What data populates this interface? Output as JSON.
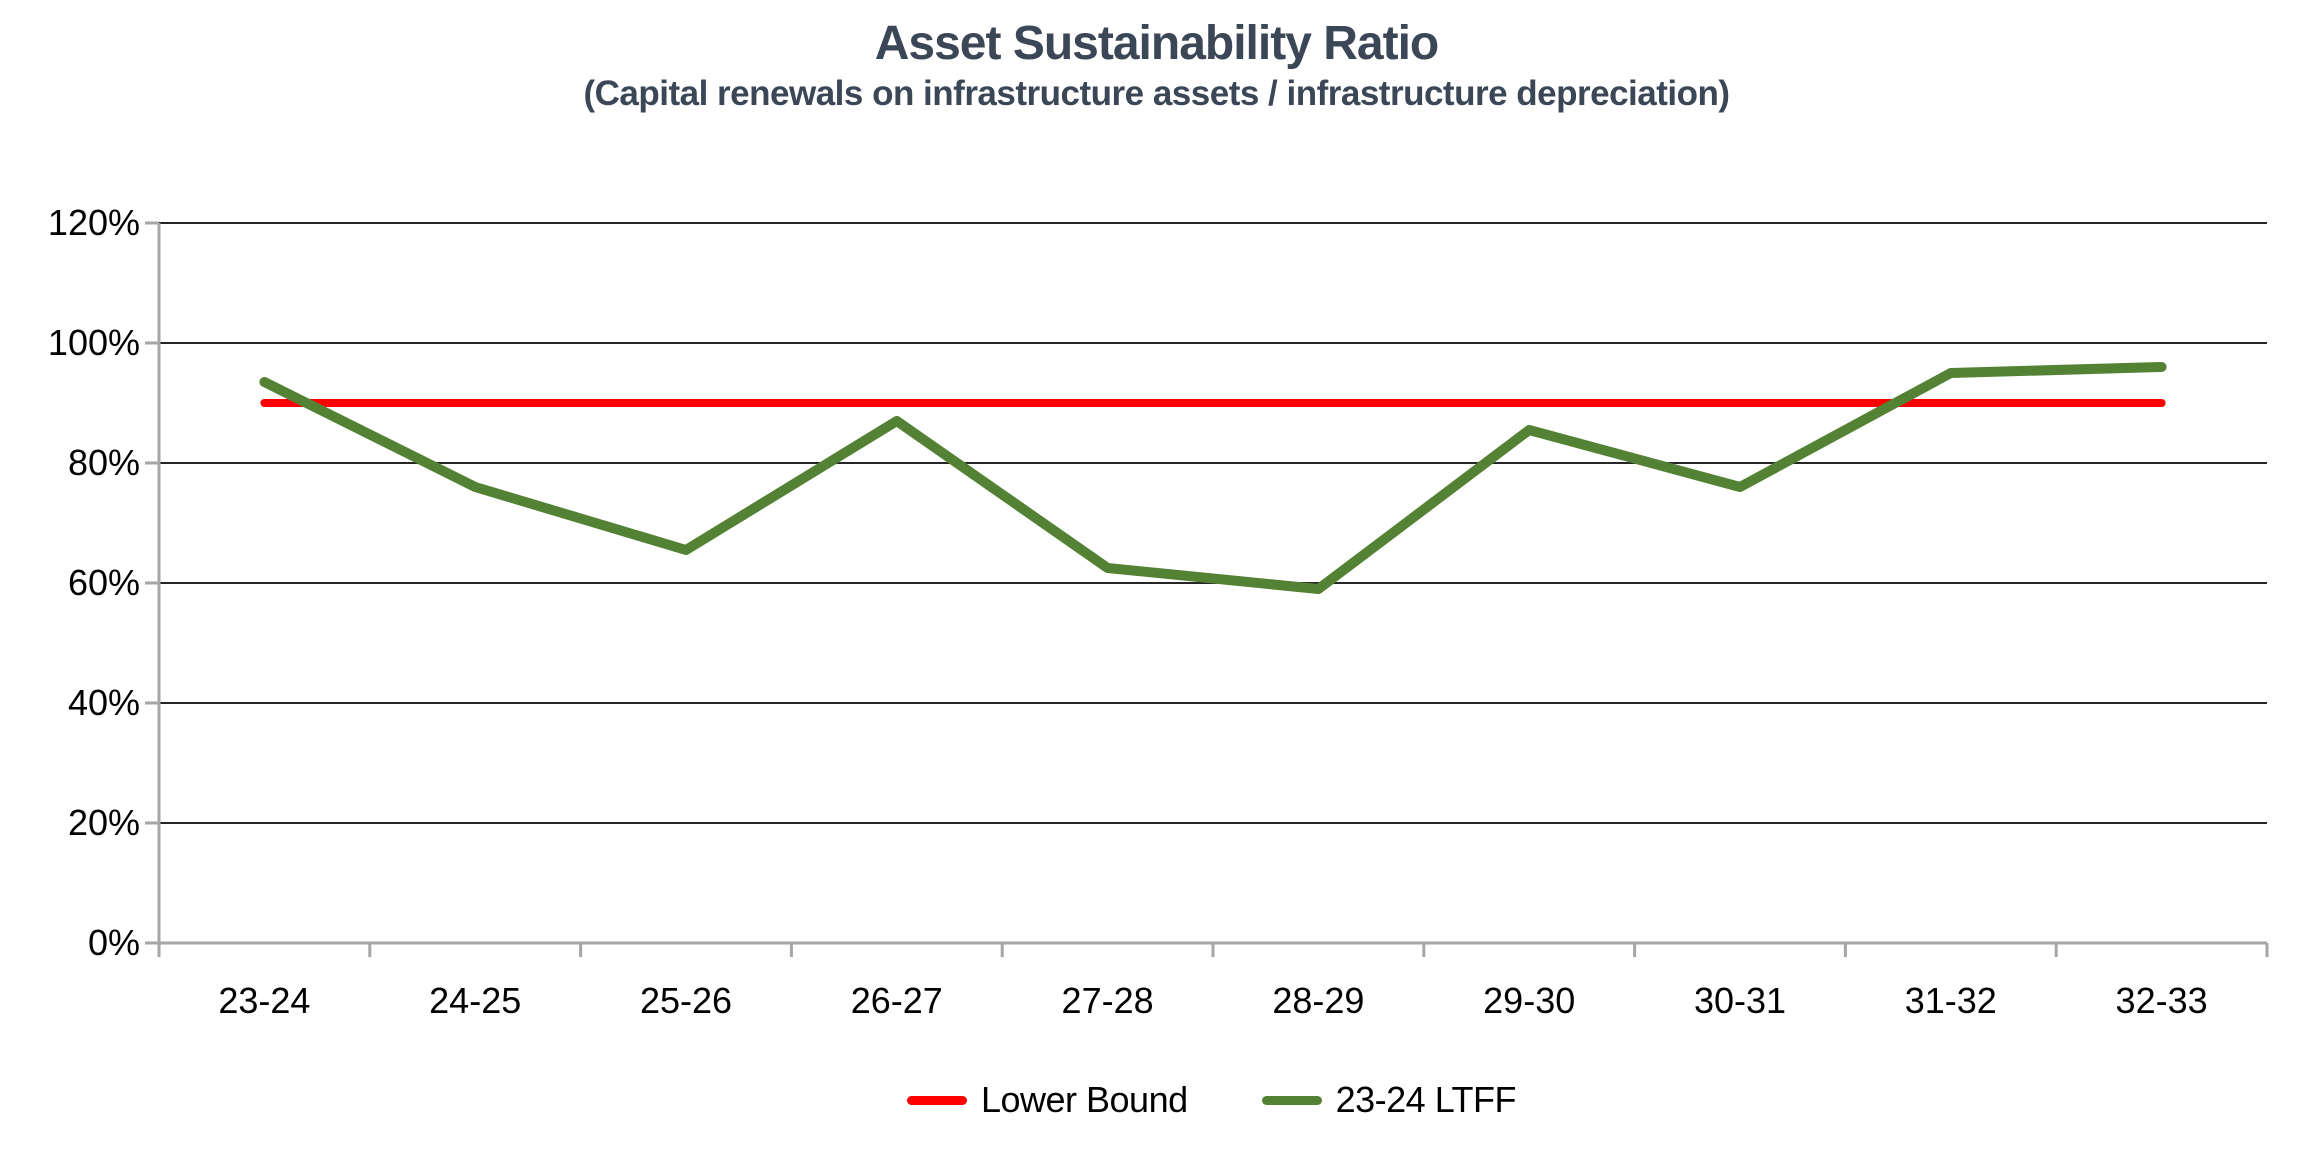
{
  "chart_data": {
    "type": "line",
    "title": "Asset Sustainability Ratio",
    "subtitle": "(Capital renewals on infrastructure assets / infrastructure depreciation)",
    "categories": [
      "23-24",
      "24-25",
      "25-26",
      "26-27",
      "27-28",
      "28-29",
      "29-30",
      "30-31",
      "31-32",
      "32-33"
    ],
    "series": [
      {
        "name": "Lower Bound",
        "color": "#FF0000",
        "values": [
          90,
          90,
          90,
          90,
          90,
          90,
          90,
          90,
          90,
          90
        ]
      },
      {
        "name": "23-24 LTFF",
        "color": "#548235",
        "values": [
          93.5,
          76,
          65.5,
          87,
          62.5,
          59,
          85.5,
          76,
          95,
          96
        ]
      }
    ],
    "ylim": [
      0,
      120
    ],
    "ytick_step": 20,
    "ytick_labels": [
      "0%",
      "20%",
      "40%",
      "60%",
      "80%",
      "100%",
      "120%"
    ],
    "unit": "%",
    "grid": "horizontal",
    "legend_position": "bottom"
  },
  "styles": {
    "title_color": "#3B4757",
    "gridline_color": "#262626",
    "axis_color": "#A6A6A6",
    "tick_label_color": "#000000",
    "background": "#FFFFFF"
  }
}
